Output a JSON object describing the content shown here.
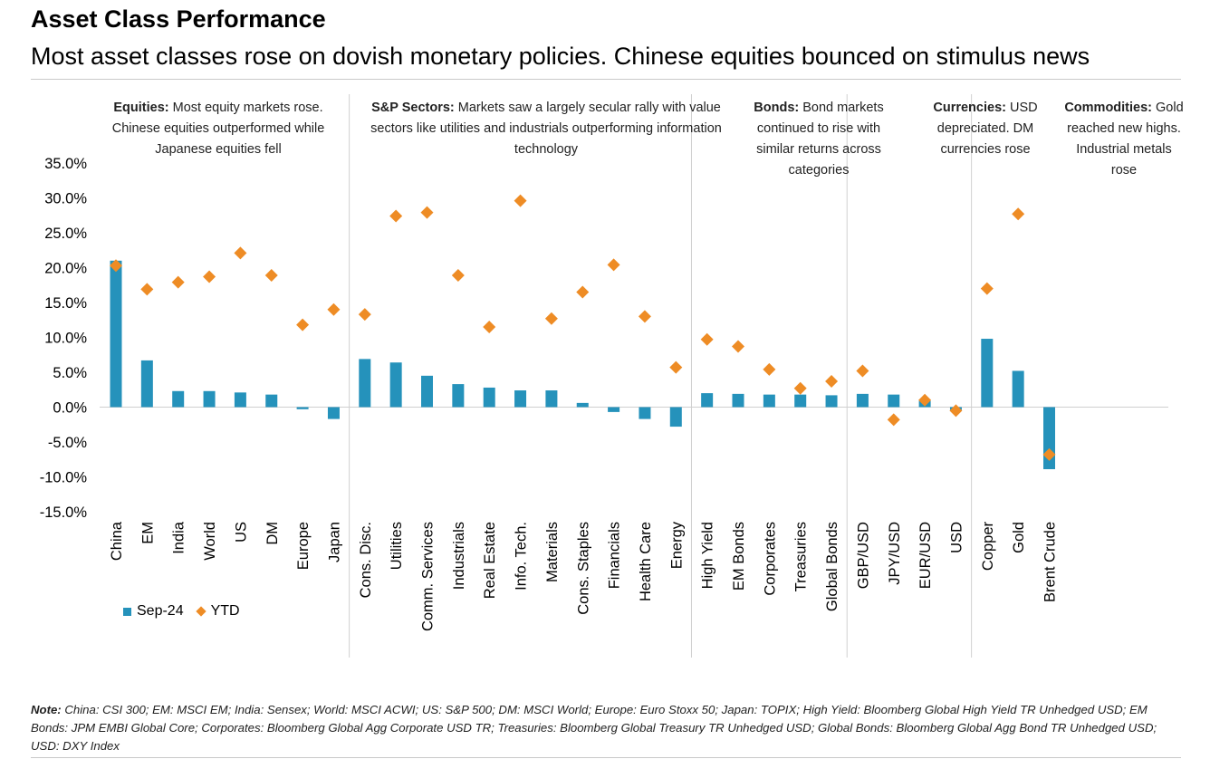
{
  "header": {
    "title": "Asset Class Performance",
    "subtitle": "Most asset classes rose on dovish monetary policies. Chinese equities bounced on stimulus news"
  },
  "colors": {
    "bar": "#2592bb",
    "marker": "#ee8c25",
    "divider": "#d0d0d0"
  },
  "legend": {
    "bar_label": "Sep-24",
    "marker_label": "YTD",
    "placement": "bottom-left"
  },
  "groups": [
    {
      "heading": "Equities:",
      "text": "Most equity markets rose. Chinese equities outperformed while Japanese equities fell"
    },
    {
      "heading": "S&P Sectors:",
      "text": "Markets saw a largely secular rally with value sectors like utilities and industrials outperforming information technology"
    },
    {
      "heading": "Bonds:",
      "text": "Bond markets continued to rise with similar returns across categories"
    },
    {
      "heading": "Currencies:",
      "text": "USD depreciated. DM currencies rose"
    },
    {
      "heading": "Commodities:",
      "text": "Gold reached new highs. Industrial metals rose"
    }
  ],
  "chart_data": {
    "type": "bar",
    "title": "",
    "xlabel": "",
    "ylabel": "",
    "ylim": [
      -15,
      35
    ],
    "yticks": [
      "35.0%",
      "30.0%",
      "25.0%",
      "20.0%",
      "15.0%",
      "10.0%",
      "5.0%",
      "0.0%",
      "-5.0%",
      "-10.0%",
      "-15.0%"
    ],
    "ytick_values": [
      35,
      30,
      25,
      20,
      15,
      10,
      5,
      0,
      -5,
      -10,
      -15
    ],
    "grid": false,
    "categories": [
      "China",
      "EM",
      "India",
      "World",
      "US",
      "DM",
      "Europe",
      "Japan",
      "Cons. Disc.",
      "Utilities",
      "Comm. Services",
      "Industrials",
      "Real Estate",
      "Info. Tech.",
      "Materials",
      "Cons. Staples",
      "Financials",
      "Health Care",
      "Energy",
      "High Yield",
      "EM Bonds",
      "Corporates",
      "Treasuries",
      "Global Bonds",
      "GBP/USD",
      "JPY/USD",
      "EUR/USD",
      "USD",
      "Copper",
      "Gold",
      "Brent Crude"
    ],
    "category_group": [
      0,
      0,
      0,
      0,
      0,
      0,
      0,
      0,
      1,
      1,
      1,
      1,
      1,
      1,
      1,
      1,
      1,
      1,
      1,
      2,
      2,
      2,
      2,
      2,
      3,
      3,
      3,
      3,
      4,
      4,
      4
    ],
    "series": [
      {
        "name": "Sep-24",
        "kind": "bar",
        "values": [
          21.0,
          6.7,
          2.3,
          2.3,
          2.1,
          1.8,
          -0.3,
          -1.7,
          6.9,
          6.4,
          4.5,
          3.3,
          2.8,
          2.4,
          2.4,
          0.6,
          -0.7,
          -1.7,
          -2.8,
          2.0,
          1.9,
          1.8,
          1.8,
          1.7,
          1.9,
          1.8,
          0.9,
          -0.4,
          9.8,
          5.2,
          -8.9
        ]
      },
      {
        "name": "YTD",
        "kind": "marker",
        "values": [
          20.3,
          16.9,
          17.9,
          18.7,
          22.1,
          18.9,
          11.8,
          14.0,
          13.3,
          27.4,
          27.9,
          18.9,
          11.5,
          29.6,
          12.7,
          16.5,
          20.4,
          13.0,
          5.7,
          9.7,
          8.7,
          5.4,
          2.7,
          3.7,
          5.2,
          -1.8,
          1.0,
          -0.5,
          17.0,
          27.7,
          -6.8
        ]
      }
    ]
  },
  "note": {
    "label": "Note:",
    "text": " China: CSI 300; EM: MSCI EM; India: Sensex; World: MSCI ACWI; US: S&P 500; DM: MSCI World; Europe: Euro Stoxx 50; Japan: TOPIX; High Yield: Bloomberg Global High Yield TR Unhedged USD; EM Bonds: JPM EMBI Global Core; Corporates: Bloomberg Global Agg Corporate USD TR; Treasuries: Bloomberg Global Treasury TR Unhedged USD; Global Bonds: Bloomberg Global Agg Bond TR Unhedged USD; USD: DXY Index"
  }
}
